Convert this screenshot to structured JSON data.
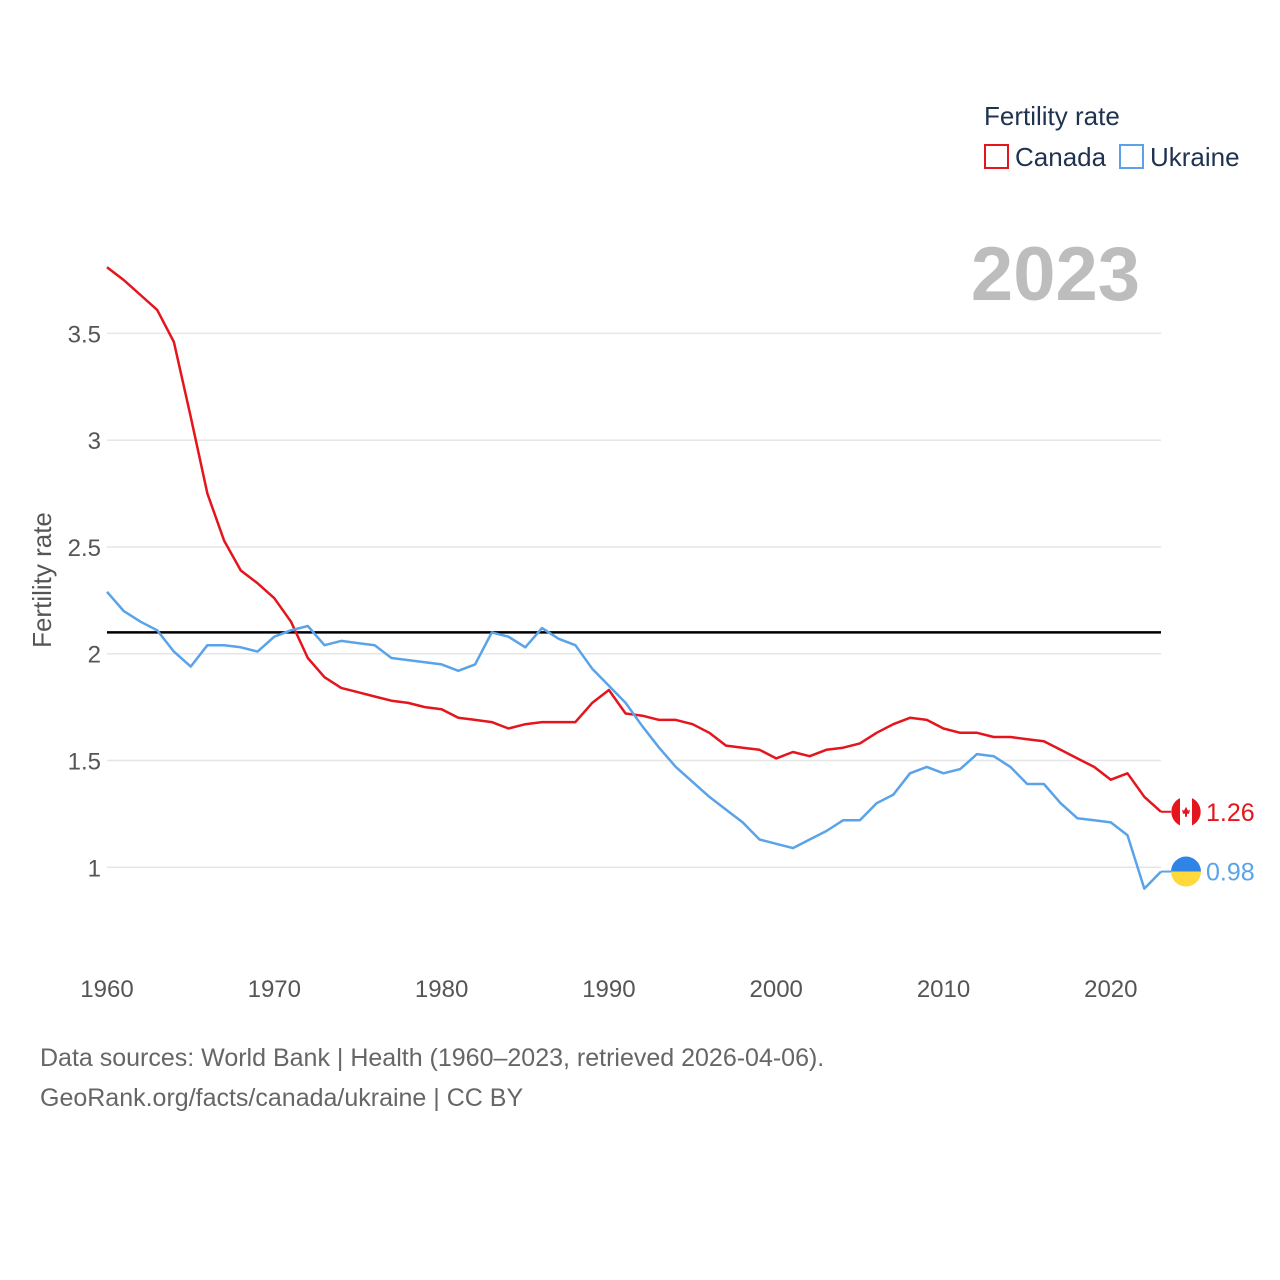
{
  "chart_data": {
    "type": "line",
    "year_label": "2023",
    "ylabel": "Fertility rate",
    "legend_title": "Fertility rate",
    "xlim": [
      1960,
      2023
    ],
    "ylim": [
      0.8,
      3.9
    ],
    "x_ticks": [
      1960,
      1970,
      1980,
      1990,
      2000,
      2010,
      2020
    ],
    "y_ticks": [
      1,
      1.5,
      2,
      2.5,
      3,
      3.5
    ],
    "y_tick_labels": [
      "1",
      "1.5",
      "2",
      "2.5",
      "3",
      "3.5"
    ],
    "reference_line": 2.1,
    "x": [
      1960,
      1961,
      1962,
      1963,
      1964,
      1965,
      1966,
      1967,
      1968,
      1969,
      1970,
      1971,
      1972,
      1973,
      1974,
      1975,
      1976,
      1977,
      1978,
      1979,
      1980,
      1981,
      1982,
      1983,
      1984,
      1985,
      1986,
      1987,
      1988,
      1989,
      1990,
      1991,
      1992,
      1993,
      1994,
      1995,
      1996,
      1997,
      1998,
      1999,
      2000,
      2001,
      2002,
      2003,
      2004,
      2005,
      2006,
      2007,
      2008,
      2009,
      2010,
      2011,
      2012,
      2013,
      2014,
      2015,
      2016,
      2017,
      2018,
      2019,
      2020,
      2021,
      2022,
      2023
    ],
    "series": [
      {
        "name": "Canada",
        "color": "#e4151c",
        "end_label": "1.26",
        "values": [
          3.81,
          3.75,
          3.68,
          3.61,
          3.46,
          3.11,
          2.75,
          2.53,
          2.39,
          2.33,
          2.26,
          2.15,
          1.98,
          1.89,
          1.84,
          1.82,
          1.8,
          1.78,
          1.77,
          1.75,
          1.74,
          1.7,
          1.69,
          1.68,
          1.65,
          1.67,
          1.68,
          1.68,
          1.68,
          1.77,
          1.83,
          1.72,
          1.71,
          1.69,
          1.69,
          1.67,
          1.63,
          1.57,
          1.56,
          1.55,
          1.51,
          1.54,
          1.52,
          1.55,
          1.56,
          1.58,
          1.63,
          1.67,
          1.7,
          1.69,
          1.65,
          1.63,
          1.63,
          1.61,
          1.61,
          1.6,
          1.59,
          1.55,
          1.51,
          1.47,
          1.41,
          1.44,
          1.33,
          1.26
        ]
      },
      {
        "name": "Ukraine",
        "color": "#5aa3e8",
        "end_label": "0.98",
        "values": [
          2.29,
          2.2,
          2.15,
          2.11,
          2.01,
          1.94,
          2.04,
          2.04,
          2.03,
          2.01,
          2.08,
          2.11,
          2.13,
          2.04,
          2.06,
          2.05,
          2.04,
          1.98,
          1.97,
          1.96,
          1.95,
          1.92,
          1.95,
          2.1,
          2.08,
          2.03,
          2.12,
          2.07,
          2.04,
          1.93,
          1.85,
          1.77,
          1.66,
          1.56,
          1.47,
          1.4,
          1.33,
          1.27,
          1.21,
          1.13,
          1.11,
          1.09,
          1.13,
          1.17,
          1.22,
          1.22,
          1.3,
          1.34,
          1.44,
          1.47,
          1.44,
          1.46,
          1.53,
          1.52,
          1.47,
          1.39,
          1.39,
          1.3,
          1.23,
          1.22,
          1.21,
          1.15,
          0.9,
          0.98
        ]
      }
    ],
    "source_line1": "Data sources: World Bank | Health (1960–2023, retrieved 2026-04-06).",
    "source_line2": "GeoRank.org/facts/canada/ukraine | CC BY"
  }
}
